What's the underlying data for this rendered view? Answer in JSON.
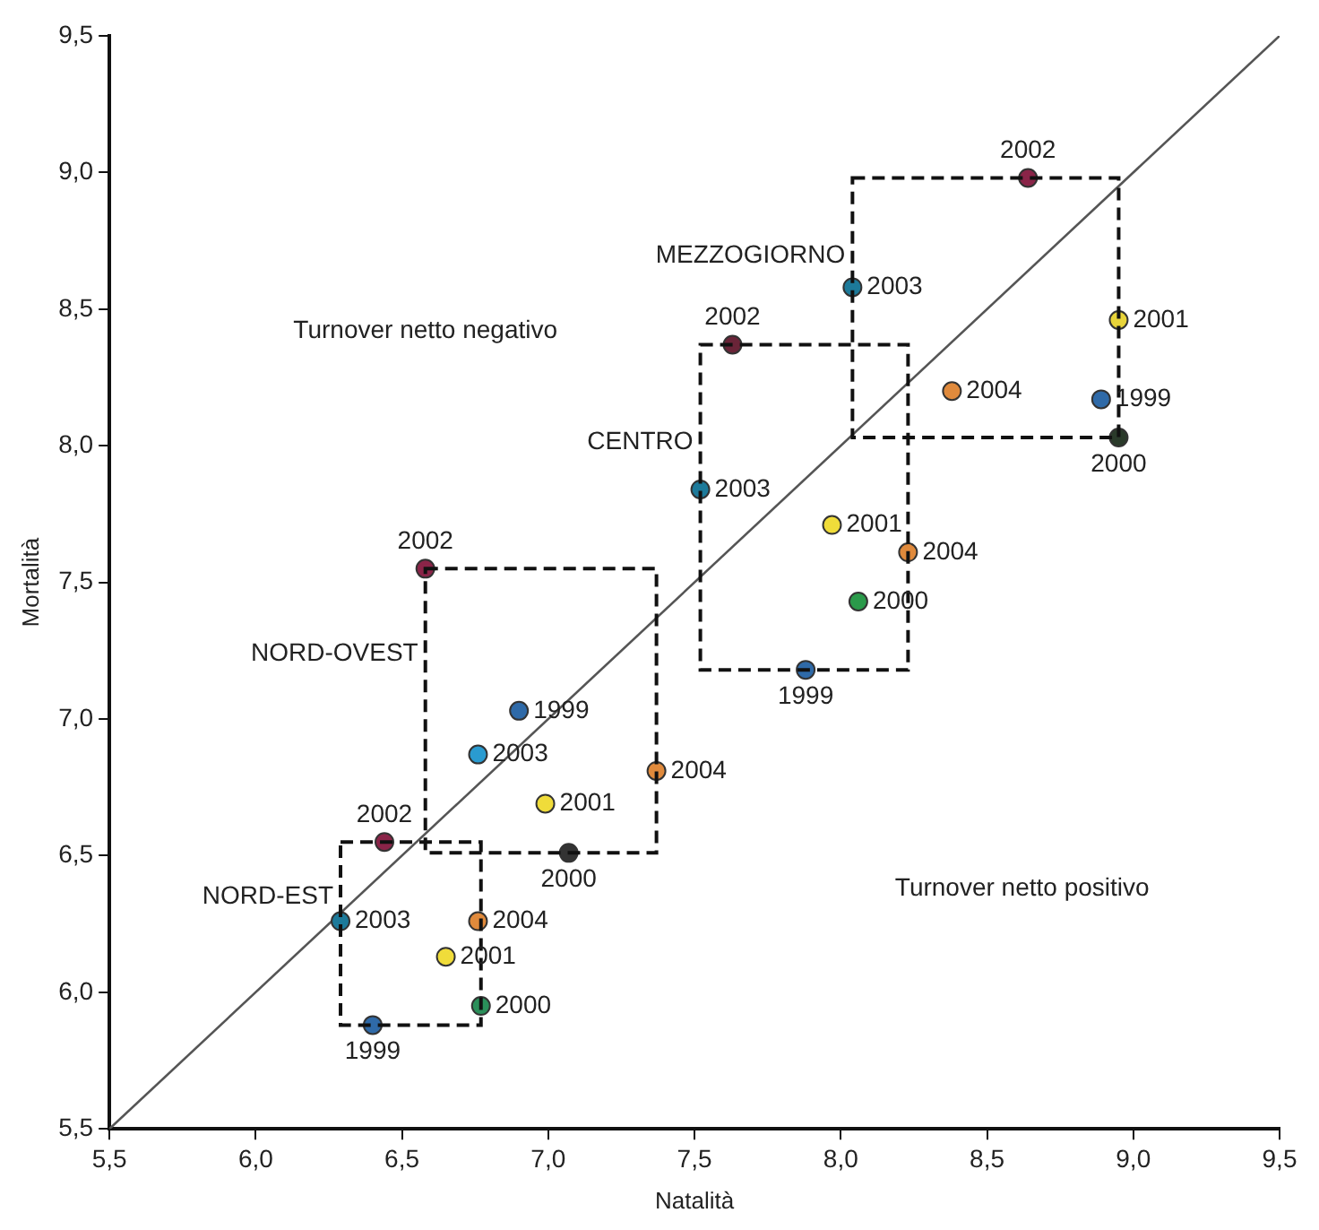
{
  "chart_data": {
    "type": "scatter",
    "xlabel": "Natalità",
    "ylabel": "Mortalità",
    "xlim": [
      5.5,
      9.5
    ],
    "ylim": [
      5.5,
      9.5
    ],
    "xticks": [
      {
        "value": 5.5,
        "label": "5,5"
      },
      {
        "value": 6,
        "label": "6,0"
      },
      {
        "value": 6.5,
        "label": "6,5"
      },
      {
        "value": 7,
        "label": "7,0"
      },
      {
        "value": 7.5,
        "label": "7,5"
      },
      {
        "value": 8,
        "label": "8,0"
      },
      {
        "value": 8.5,
        "label": "8,5"
      },
      {
        "value": 9,
        "label": "9,0"
      },
      {
        "value": 9.5,
        "label": "9,5"
      }
    ],
    "yticks": [
      {
        "value": 5.5,
        "label": "5,5"
      },
      {
        "value": 6,
        "label": "6,0"
      },
      {
        "value": 6.5,
        "label": "6,5"
      },
      {
        "value": 7,
        "label": "7,0"
      },
      {
        "value": 7.5,
        "label": "7,5"
      },
      {
        "value": 8,
        "label": "8,0"
      },
      {
        "value": 8.5,
        "label": "8,5"
      },
      {
        "value": 9,
        "label": "9,0"
      },
      {
        "value": 9.5,
        "label": "9,5"
      }
    ],
    "grid": false,
    "legend": false,
    "marker": "circle",
    "annotations": [
      "Turnover netto negativo",
      "Turnover netto positivo",
      {
        "text": "1999",
        "x": 6.4,
        "y": 5.88
      },
      {
        "text": "2000",
        "x": 6.77,
        "y": 5.95
      },
      {
        "text": "2001",
        "x": 6.65,
        "y": 6.13
      },
      {
        "text": "2002",
        "x": 6.44,
        "y": 6.55
      },
      {
        "text": "2003",
        "x": 6.29,
        "y": 6.26
      },
      {
        "text": "2004",
        "x": 6.76,
        "y": 6.26
      },
      {
        "text": "1999",
        "x": 6.9,
        "y": 7.03
      },
      {
        "text": "2000",
        "x": 7.07,
        "y": 6.51
      },
      {
        "text": "2001",
        "x": 6.99,
        "y": 6.69
      },
      {
        "text": "2002",
        "x": 6.58,
        "y": 7.55
      },
      {
        "text": "2003",
        "x": 6.76,
        "y": 6.87
      },
      {
        "text": "2004",
        "x": 7.37,
        "y": 6.81
      },
      {
        "text": "1999",
        "x": 7.88,
        "y": 7.18
      },
      {
        "text": "2000",
        "x": 8.06,
        "y": 7.43
      },
      {
        "text": "2001",
        "x": 7.97,
        "y": 7.71
      },
      {
        "text": "2002",
        "x": 7.63,
        "y": 8.37
      },
      {
        "text": "2003",
        "x": 7.52,
        "y": 7.84
      },
      {
        "text": "2004",
        "x": 8.23,
        "y": 7.61
      },
      {
        "text": "1999",
        "x": 8.89,
        "y": 8.17
      },
      {
        "text": "2000",
        "x": 8.95,
        "y": 8.03
      },
      {
        "text": "2001",
        "x": 8.95,
        "y": 8.46
      },
      {
        "text": "2002",
        "x": 8.64,
        "y": 8.98
      },
      {
        "text": "2003",
        "x": 8.04,
        "y": 8.58
      },
      {
        "text": "2004",
        "x": 8.38,
        "y": 8.2
      }
    ],
    "series": [
      {
        "name": "NORD-EST",
        "x": [
          6.4,
          6.77,
          6.65,
          6.44,
          6.29,
          6.76
        ],
        "values": [
          5.88,
          5.95,
          6.13,
          6.55,
          6.26,
          6.26
        ],
        "colors": [
          "#2f6aa8",
          "#2a8f5a",
          "#f0dc3a",
          "#8a2448",
          "#1d7a9a",
          "#e08a3c"
        ]
      },
      {
        "name": "NORD-OVEST",
        "x": [
          6.9,
          7.07,
          6.99,
          6.58,
          6.76,
          7.37
        ],
        "values": [
          7.03,
          6.51,
          6.69,
          7.55,
          6.87,
          6.81
        ],
        "colors": [
          "#2f6aa8",
          "#333333",
          "#f0dc3a",
          "#8a2448",
          "#2a9bd0",
          "#e08a3c"
        ]
      },
      {
        "name": "CENTRO",
        "x": [
          7.88,
          8.06,
          7.97,
          7.63,
          7.52,
          8.23
        ],
        "values": [
          7.18,
          7.43,
          7.71,
          8.37,
          7.84,
          7.61
        ],
        "colors": [
          "#2f6aa8",
          "#2a9a4a",
          "#f0dc3a",
          "#6a2438",
          "#1d7a9a",
          "#e08a3c"
        ]
      },
      {
        "name": "MEZZOGIORNO",
        "x": [
          8.89,
          8.95,
          8.95,
          8.64,
          8.04,
          8.38
        ],
        "values": [
          8.17,
          8.03,
          8.46,
          8.98,
          8.58,
          8.2
        ],
        "colors": [
          "#2f6aa8",
          "#2a3a2a",
          "#e8d43a",
          "#8a2448",
          "#1d7a9a",
          "#e08a3c"
        ]
      },
      {
        "type": "line",
        "x": [
          5.5,
          9.5
        ],
        "values": [
          5.5,
          9.5
        ],
        "color": "#555555",
        "marker": "none"
      }
    ]
  }
}
